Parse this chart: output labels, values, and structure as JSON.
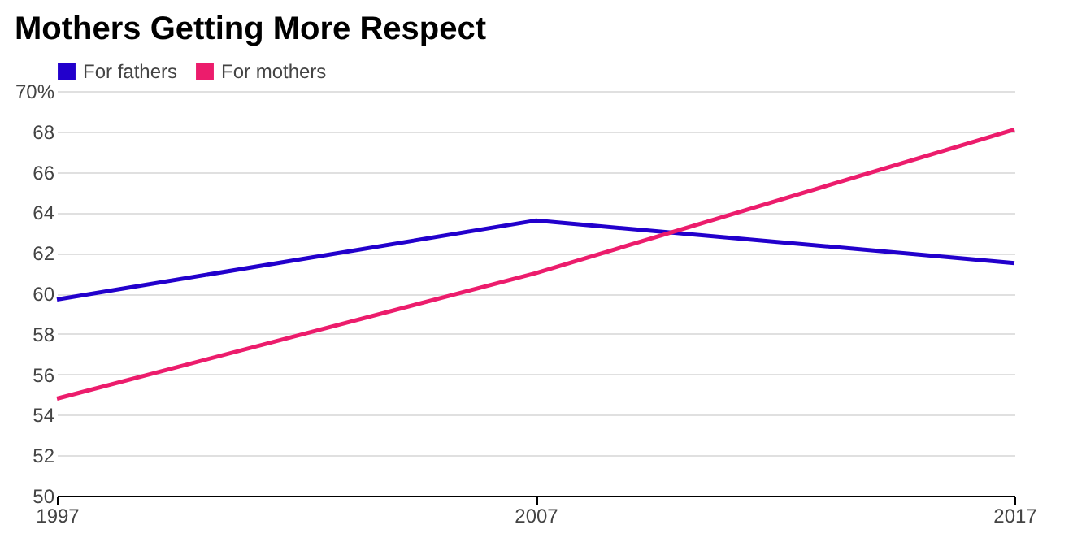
{
  "chart_data": {
    "type": "line",
    "title": "Mothers Getting More Respect",
    "x": [
      1997,
      2007,
      2017
    ],
    "series": [
      {
        "name": "For fathers",
        "color": "#2200cc",
        "values": [
          59.7,
          63.6,
          61.5
        ]
      },
      {
        "name": "For mothers",
        "color": "#ec1c6c",
        "values": [
          54.8,
          61.0,
          68.1
        ]
      }
    ],
    "xlim": [
      1997,
      2017
    ],
    "xticks": [
      1997,
      2007,
      2017
    ],
    "ylim": [
      50,
      70
    ],
    "yticks": [
      50,
      52,
      54,
      56,
      58,
      60,
      62,
      64,
      66,
      68,
      {
        "value": 70,
        "label": "70%"
      }
    ],
    "grid": "y",
    "legend": "top left",
    "marker": "none",
    "line_style": "solid"
  }
}
